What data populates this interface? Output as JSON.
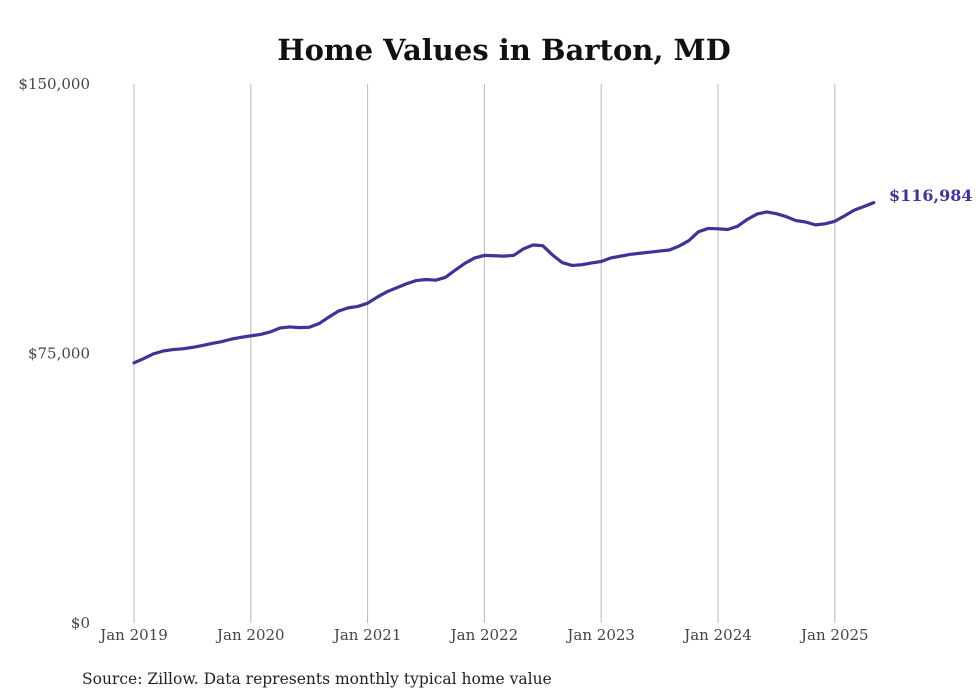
{
  "chart_data": {
    "type": "line",
    "title": "Home Values in Barton, MD",
    "xlabel": "",
    "ylabel": "",
    "ylim": [
      0,
      150000
    ],
    "xlim": [
      "2019-01",
      "2025-05"
    ],
    "y_ticks": [
      {
        "value": 0,
        "label": "$0"
      },
      {
        "value": 75000,
        "label": "$75,000"
      },
      {
        "value": 150000,
        "label": "$150,000"
      }
    ],
    "x_ticks": [
      {
        "value": "2019-01",
        "label": "Jan 2019"
      },
      {
        "value": "2020-01",
        "label": "Jan 2020"
      },
      {
        "value": "2021-01",
        "label": "Jan 2021"
      },
      {
        "value": "2022-01",
        "label": "Jan 2022"
      },
      {
        "value": "2023-01",
        "label": "Jan 2023"
      },
      {
        "value": "2024-01",
        "label": "Jan 2024"
      },
      {
        "value": "2025-01",
        "label": "Jan 2025"
      }
    ],
    "grid": {
      "vertical": true,
      "horizontal": false
    },
    "line_color": "#3b3596",
    "end_label": "$116,984",
    "series": [
      {
        "x": [
          "2019-01",
          "2019-02",
          "2019-03",
          "2019-04",
          "2019-05",
          "2019-06",
          "2019-07",
          "2019-08",
          "2019-09",
          "2019-10",
          "2019-11",
          "2019-12",
          "2020-01",
          "2020-02",
          "2020-03",
          "2020-04",
          "2020-05",
          "2020-06",
          "2020-07",
          "2020-08",
          "2020-09",
          "2020-10",
          "2020-11",
          "2020-12",
          "2021-01",
          "2021-02",
          "2021-03",
          "2021-04",
          "2021-05",
          "2021-06",
          "2021-07",
          "2021-08",
          "2021-09",
          "2021-10",
          "2021-11",
          "2021-12",
          "2022-01",
          "2022-02",
          "2022-03",
          "2022-04",
          "2022-05",
          "2022-06",
          "2022-07",
          "2022-08",
          "2022-09",
          "2022-10",
          "2022-11",
          "2022-12",
          "2023-01",
          "2023-02",
          "2023-03",
          "2023-04",
          "2023-05",
          "2023-06",
          "2023-07",
          "2023-08",
          "2023-09",
          "2023-10",
          "2023-11",
          "2023-12",
          "2024-01",
          "2024-02",
          "2024-03",
          "2024-04",
          "2024-05",
          "2024-06",
          "2024-07",
          "2024-08",
          "2024-09",
          "2024-10",
          "2024-11",
          "2024-12",
          "2025-01",
          "2025-02",
          "2025-03",
          "2025-04",
          "2025-05"
        ],
        "y": [
          72400,
          73600,
          74900,
          75700,
          76100,
          76300,
          76700,
          77200,
          77800,
          78300,
          79000,
          79500,
          79900,
          80300,
          81000,
          82100,
          82400,
          82200,
          82300,
          83300,
          85100,
          86800,
          87700,
          88100,
          89000,
          90700,
          92200,
          93300,
          94400,
          95300,
          95600,
          95400,
          96200,
          98200,
          100100,
          101600,
          102300,
          102200,
          102100,
          102300,
          104100,
          105200,
          105000,
          102400,
          100300,
          99500,
          99700,
          100200,
          100600,
          101600,
          102100,
          102600,
          102900,
          103200,
          103500,
          103800,
          104900,
          106400,
          108900,
          109800,
          109700,
          109500,
          110400,
          112300,
          113800,
          114400,
          113900,
          113100,
          112000,
          111600,
          110800,
          111100,
          111800,
          113300,
          114900,
          115900,
          116984
        ]
      }
    ],
    "source": "Source: Zillow. Data represents monthly typical home value"
  }
}
